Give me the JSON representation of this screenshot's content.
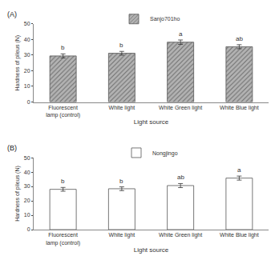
{
  "chart_data": [
    {
      "type": "bar",
      "title": "(A)",
      "x_label": "Light source",
      "y_label": "Hardness of pileus (N)",
      "categories": [
        "Fluorescent lamp (control)",
        "White light",
        "White Green light",
        "White Blue light"
      ],
      "series": [
        {
          "name": "Sanjo701ho",
          "color": "#b3b3b3",
          "marker": "hatched",
          "values": [
            29.5,
            31.2,
            38.3,
            35.4
          ],
          "errors": [
            1.3,
            1.2,
            1.4,
            1.3
          ],
          "annotations": [
            "b",
            "b",
            "a",
            "ab"
          ]
        }
      ],
      "ylim": [
        0,
        50
      ],
      "yticks": [
        0,
        10,
        20,
        30,
        40,
        50
      ],
      "grid": false,
      "legend": "top"
    },
    {
      "type": "bar",
      "title": "(B)",
      "x_label": "Light source",
      "y_label": "Hardness of pileus (N)",
      "categories": [
        "Fluorescent lamp (control)",
        "White light",
        "White Green light",
        "White Blue light"
      ],
      "series": [
        {
          "name": "Nongjingo",
          "color": "#ffffff",
          "marker": "plain",
          "values": [
            28.0,
            28.4,
            30.6,
            35.8
          ],
          "errors": [
            1.3,
            1.3,
            1.4,
            1.4
          ],
          "annotations": [
            "b",
            "b",
            "ab",
            "a"
          ]
        }
      ],
      "ylim": [
        0,
        50
      ],
      "yticks": [
        0,
        10,
        20,
        30,
        40,
        50
      ],
      "grid": false,
      "legend": "top"
    }
  ]
}
